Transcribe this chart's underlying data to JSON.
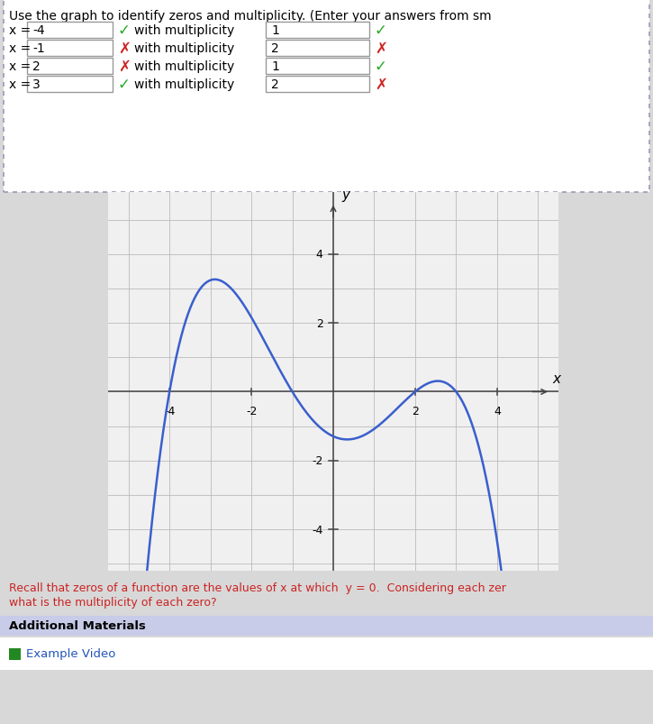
{
  "title": "Use the graph to identify zeros and multiplicity. (Enter your answers from sm",
  "rows": [
    {
      "label": "x =",
      "x_val": "-4",
      "x_correct": true,
      "mult": "1",
      "mult_correct": true
    },
    {
      "label": "x =",
      "x_val": "-1",
      "x_correct": false,
      "mult": "2",
      "mult_correct": false
    },
    {
      "label": "x =",
      "x_val": "2",
      "x_correct": false,
      "mult": "1",
      "mult_correct": true
    },
    {
      "label": "x =",
      "x_val": "3",
      "x_correct": true,
      "mult": "2",
      "mult_correct": false
    }
  ],
  "hint_line1": "Recall that zeros of a function are the values of x at which  y = 0.  Considering each zer",
  "hint_line2": "what is the multiplicity of each zero?",
  "additional_materials": "Additional Materials",
  "example_video": "Example Video",
  "curve_color": "#3a5fcd",
  "axis_color": "#444444",
  "grid_color": "#bbbbbb",
  "bg_outer": "#d8d8d8",
  "bg_dotted": "#ffffff",
  "bg_graph": "#f0f0f0",
  "bg_hint": "#ffffff",
  "bg_addmat": "#c8cce8",
  "bg_exvid": "#ffffff",
  "xlim": [
    -5.5,
    5.5
  ],
  "ylim": [
    -5.2,
    5.8
  ],
  "xticks": [
    -4,
    -2,
    2,
    4
  ],
  "yticks": [
    -4,
    -2,
    2,
    4
  ],
  "poly_a": 0.054,
  "green": "#22aa22",
  "red": "#cc2222",
  "hint_color": "#cc2222",
  "link_color": "#2255bb",
  "icon_color": "#228822"
}
